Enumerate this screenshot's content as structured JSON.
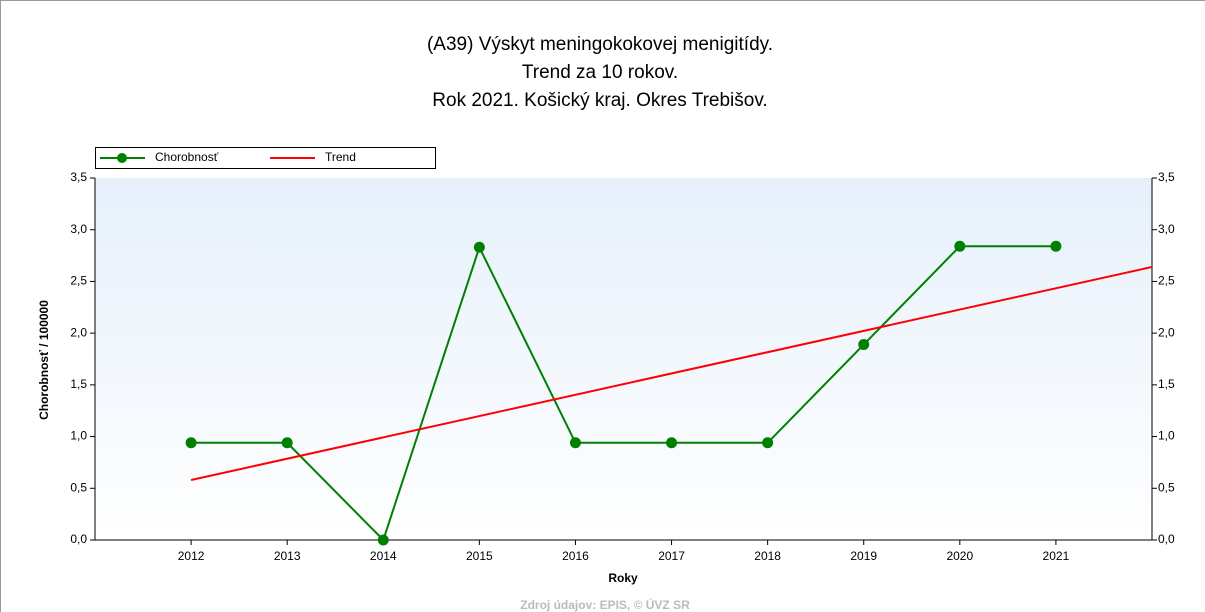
{
  "chart_data": {
    "type": "line",
    "title_lines": [
      "(A39) Výskyt meningokokovej menigitídy.",
      "Trend za 10 rokov.",
      "Rok 2021. Košický kraj. Okres Trebišov."
    ],
    "x_label": "Roky",
    "y_label": "Chorobnosť / 100000",
    "source": "Zdroj údajov: EPIS, © ÚVZ SR",
    "x": [
      2012,
      2013,
      2014,
      2015,
      2016,
      2017,
      2018,
      2019,
      2020,
      2021
    ],
    "series": [
      {
        "name": "Chorobnosť",
        "color": "#008000",
        "marker": true,
        "values": [
          0.94,
          0.94,
          0,
          2.83,
          0.94,
          0.94,
          0.94,
          1.89,
          2.84,
          2.84
        ]
      },
      {
        "name": "Trend",
        "color": "#ff0000",
        "marker": false,
        "x": [
          2012,
          2022
        ],
        "values": [
          0.58,
          2.64
        ]
      }
    ],
    "xlim": [
      2011,
      2022
    ],
    "xticks": [
      2012,
      2013,
      2014,
      2015,
      2016,
      2017,
      2018,
      2019,
      2020,
      2021
    ],
    "ylim": [
      0,
      3.5
    ],
    "yticks": [
      {
        "value": 0,
        "label": "0,0"
      },
      {
        "value": 0.5,
        "label": "0,5"
      },
      {
        "value": 1,
        "label": "1,0"
      },
      {
        "value": 1.5,
        "label": "1,5"
      },
      {
        "value": 2,
        "label": "2,0"
      },
      {
        "value": 2.5,
        "label": "2,5"
      },
      {
        "value": 3,
        "label": "3,0"
      },
      {
        "value": 3.5,
        "label": "3,5"
      }
    ]
  }
}
